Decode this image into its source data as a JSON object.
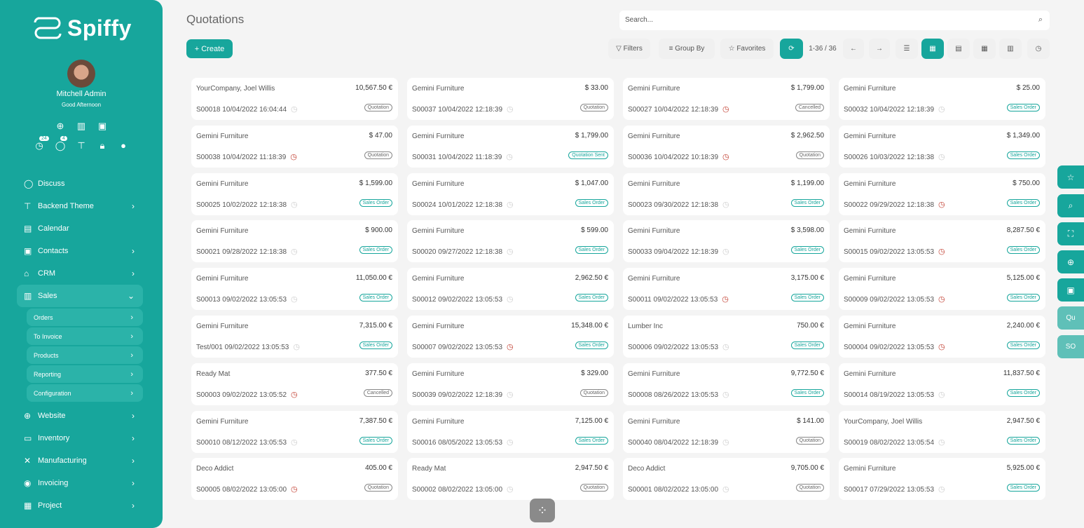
{
  "brand": "Spiffy",
  "user": {
    "name": "Mitchell Admin",
    "greeting": "Good Afternoon",
    "activity_count": "24",
    "message_count": "4"
  },
  "menu": [
    {
      "label": "Discuss",
      "icon": "chat-icon"
    },
    {
      "label": "Backend Theme",
      "icon": "paint-roller-icon",
      "chev": "›"
    },
    {
      "label": "Calendar",
      "icon": "calendar-icon"
    },
    {
      "label": "Contacts",
      "icon": "contacts-icon",
      "chev": "›"
    },
    {
      "label": "CRM",
      "icon": "crm-icon",
      "chev": "›"
    },
    {
      "label": "Sales",
      "icon": "chart-icon",
      "chev": "⌄",
      "active": true
    }
  ],
  "submenu": [
    {
      "label": "Orders"
    },
    {
      "label": "To Invoice"
    },
    {
      "label": "Products"
    },
    {
      "label": "Reporting"
    },
    {
      "label": "Configuration"
    }
  ],
  "menu2": [
    {
      "label": "Website",
      "icon": "globe-icon",
      "chev": "›"
    },
    {
      "label": "Inventory",
      "icon": "box-icon",
      "chev": "›"
    },
    {
      "label": "Manufacturing",
      "icon": "tools-icon",
      "chev": "›"
    },
    {
      "label": "Invoicing",
      "icon": "dollar-icon",
      "chev": "›"
    },
    {
      "label": "Project",
      "icon": "project-icon",
      "chev": "›"
    }
  ],
  "page_title": "Quotations",
  "search": {
    "placeholder": "Search..."
  },
  "toolbar": {
    "create": "+ Create",
    "filters": "Filters",
    "group_by": "Group By",
    "favorites": "Favorites",
    "pager": "1-36 / 36"
  },
  "colors": {
    "accent": "#17a69c",
    "overdue": "#c0392b"
  },
  "cards": [
    [
      "YourCompany, Joel Willis",
      "10,567.50 €",
      "S00018 10/04/2022 16:04:44",
      0,
      "Quotation"
    ],
    [
      "Gemini Furniture",
      "$ 33.00",
      "S00037 10/04/2022 12:18:39",
      0,
      "Quotation"
    ],
    [
      "Gemini Furniture",
      "$ 1,799.00",
      "S00027 10/04/2022 12:18:39",
      1,
      "Cancelled"
    ],
    [
      "Gemini Furniture",
      "$ 25.00",
      "S00032 10/04/2022 12:18:39",
      0,
      "Sales Order"
    ],
    [
      "Gemini Furniture",
      "$ 47.00",
      "S00038 10/04/2022 11:18:39",
      1,
      "Quotation"
    ],
    [
      "Gemini Furniture",
      "$ 1,799.00",
      "S00031 10/04/2022 11:18:39",
      0,
      "Quotation Sent"
    ],
    [
      "Gemini Furniture",
      "$ 2,962.50",
      "S00036 10/04/2022 10:18:39",
      1,
      "Quotation"
    ],
    [
      "Gemini Furniture",
      "$ 1,349.00",
      "S00026 10/03/2022 12:18:38",
      0,
      "Sales Order"
    ],
    [
      "Gemini Furniture",
      "$ 1,599.00",
      "S00025 10/02/2022 12:18:38",
      0,
      "Sales Order"
    ],
    [
      "Gemini Furniture",
      "$ 1,047.00",
      "S00024 10/01/2022 12:18:38",
      0,
      "Sales Order"
    ],
    [
      "Gemini Furniture",
      "$ 1,199.00",
      "S00023 09/30/2022 12:18:38",
      0,
      "Sales Order"
    ],
    [
      "Gemini Furniture",
      "$ 750.00",
      "S00022 09/29/2022 12:18:38",
      1,
      "Sales Order"
    ],
    [
      "Gemini Furniture",
      "$ 900.00",
      "S00021 09/28/2022 12:18:38",
      0,
      "Sales Order"
    ],
    [
      "Gemini Furniture",
      "$ 599.00",
      "S00020 09/27/2022 12:18:38",
      0,
      "Sales Order"
    ],
    [
      "Gemini Furniture",
      "$ 3,598.00",
      "S00033 09/04/2022 12:18:39",
      0,
      "Sales Order"
    ],
    [
      "Gemini Furniture",
      "8,287.50 €",
      "S00015 09/02/2022 13:05:53",
      1,
      "Sales Order"
    ],
    [
      "Gemini Furniture",
      "11,050.00 €",
      "S00013 09/02/2022 13:05:53",
      0,
      "Sales Order"
    ],
    [
      "Gemini Furniture",
      "2,962.50 €",
      "S00012 09/02/2022 13:05:53",
      0,
      "Sales Order"
    ],
    [
      "Gemini Furniture",
      "3,175.00 €",
      "S00011 09/02/2022 13:05:53",
      1,
      "Sales Order"
    ],
    [
      "Gemini Furniture",
      "5,125.00 €",
      "S00009 09/02/2022 13:05:53",
      1,
      "Sales Order"
    ],
    [
      "Gemini Furniture",
      "7,315.00 €",
      "Test/001 09/02/2022 13:05:53",
      0,
      "Sales Order"
    ],
    [
      "Gemini Furniture",
      "15,348.00 €",
      "S00007 09/02/2022 13:05:53",
      1,
      "Sales Order"
    ],
    [
      "Lumber Inc",
      "750.00 €",
      "S00006 09/02/2022 13:05:53",
      0,
      "Sales Order"
    ],
    [
      "Gemini Furniture",
      "2,240.00 €",
      "S00004 09/02/2022 13:05:53",
      1,
      "Sales Order"
    ],
    [
      "Ready Mat",
      "377.50 €",
      "S00003 09/02/2022 13:05:52",
      1,
      "Cancelled"
    ],
    [
      "Gemini Furniture",
      "$ 329.00",
      "S00039 09/02/2022 12:18:39",
      0,
      "Quotation"
    ],
    [
      "Gemini Furniture",
      "9,772.50 €",
      "S00008 08/26/2022 13:05:53",
      0,
      "Sales Order"
    ],
    [
      "Gemini Furniture",
      "11,837.50 €",
      "S00014 08/19/2022 13:05:53",
      0,
      "Sales Order"
    ],
    [
      "Gemini Furniture",
      "7,387.50 €",
      "S00010 08/12/2022 13:05:53",
      0,
      "Sales Order"
    ],
    [
      "Gemini Furniture",
      "7,125.00 €",
      "S00016 08/05/2022 13:05:53",
      0,
      "Sales Order"
    ],
    [
      "Gemini Furniture",
      "$ 141.00",
      "S00040 08/04/2022 12:18:39",
      0,
      "Quotation"
    ],
    [
      "YourCompany, Joel Willis",
      "2,947.50 €",
      "S00019 08/02/2022 13:05:54",
      0,
      "Sales Order"
    ],
    [
      "Deco Addict",
      "405.00 €",
      "S00005 08/02/2022 13:05:00",
      1,
      "Quotation"
    ],
    [
      "Ready Mat",
      "2,947.50 €",
      "S00002 08/02/2022 13:05:00",
      0,
      "Quotation"
    ],
    [
      "Deco Addict",
      "9,705.00 €",
      "S00001 08/02/2022 13:05:00",
      0,
      "Quotation"
    ],
    [
      "Gemini Furniture",
      "5,925.00 €",
      "S00017 07/29/2022 13:05:53",
      0,
      "Sales Order"
    ]
  ],
  "side_actions": {
    "qu": "Qu",
    "so": "SO"
  }
}
